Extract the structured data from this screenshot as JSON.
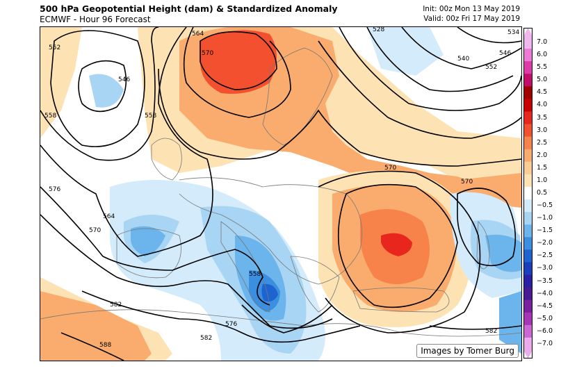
{
  "header": {
    "title": "500 hPa Geopotential Height (dam) & Standardized Anomaly",
    "subtitle": "ECMWF - Hour 96 Forecast",
    "init": "Init: 00z Mon 13 May 2019",
    "valid": "Valid: 00z Fri 17 May 2019"
  },
  "credit": "Images by Tomer Burg",
  "contour_labels": [
    "534",
    "540",
    "546",
    "552",
    "558",
    "564",
    "570",
    "576",
    "582",
    "588",
    "528"
  ],
  "colorbar": {
    "labels": [
      "7.0",
      "6.0",
      "5.5",
      "5.0",
      "4.5",
      "4.0",
      "3.5",
      "3.0",
      "2.5",
      "2.0",
      "1.5",
      "1.0",
      "0.5",
      "−0.5",
      "−1.0",
      "−1.5",
      "−2.0",
      "−2.5",
      "−3.0",
      "−3.5",
      "−4.0",
      "−4.5",
      "−5.0",
      "−6.0",
      "−7.0"
    ],
    "colors": [
      "#f2b6ee",
      "#ee7ad6",
      "#de3aa8",
      "#c40c6a",
      "#a00000",
      "#c80000",
      "#e8261e",
      "#f3502f",
      "#f7834a",
      "#f9ac6d",
      "#fbcc94",
      "#fde2b4",
      "#ffffff",
      "#d3ebfa",
      "#a9d5f4",
      "#6cb4ec",
      "#3a8fe0",
      "#1d64d0",
      "#1a3fbe",
      "#2a20a6",
      "#4a1a96",
      "#7a20a0",
      "#a834b8",
      "#cc66d4",
      "#ebaaeb"
    ]
  },
  "colors": {
    "land_border": "#777777",
    "contour": "#000000"
  }
}
